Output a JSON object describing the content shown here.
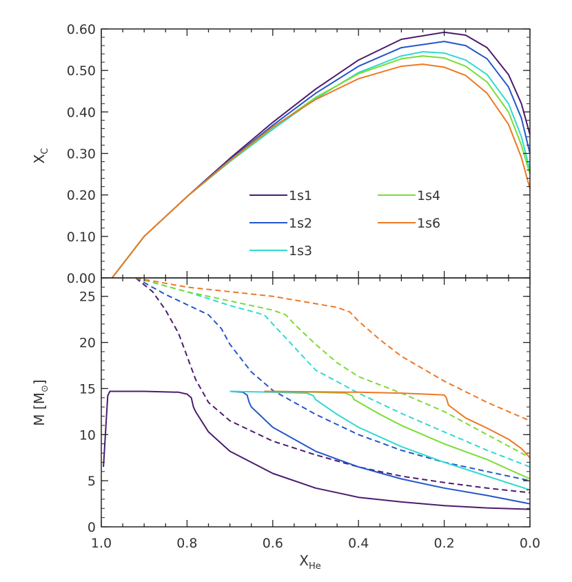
{
  "figure": {
    "x_axis_label": "X",
    "x_axis_label_sub": "He"
  },
  "chart_data": [
    {
      "type": "line",
      "panel": "top",
      "ylabel": "X",
      "ylabel_sub": "C",
      "xlim": [
        1.0,
        0.0
      ],
      "ylim": [
        0.0,
        0.6
      ],
      "x_reversed": true,
      "yticks": [
        "0.00",
        "0.10",
        "0.20",
        "0.30",
        "0.40",
        "0.50",
        "0.60"
      ],
      "grid": false,
      "legend_position": "lower-right",
      "series": [
        {
          "name": "1s1",
          "color": "#4b1a6e",
          "style": "solid",
          "x": [
            0.975,
            0.9,
            0.8,
            0.7,
            0.6,
            0.5,
            0.4,
            0.3,
            0.2,
            0.15,
            0.1,
            0.05,
            0.02,
            0.0
          ],
          "y": [
            0.0,
            0.1,
            0.196,
            0.288,
            0.375,
            0.455,
            0.525,
            0.575,
            0.592,
            0.585,
            0.555,
            0.49,
            0.42,
            0.345
          ]
        },
        {
          "name": "1s2",
          "color": "#2255cc",
          "style": "solid",
          "x": [
            0.975,
            0.9,
            0.8,
            0.7,
            0.6,
            0.5,
            0.4,
            0.3,
            0.2,
            0.15,
            0.1,
            0.05,
            0.02,
            0.0
          ],
          "y": [
            0.0,
            0.1,
            0.196,
            0.285,
            0.368,
            0.445,
            0.51,
            0.555,
            0.57,
            0.56,
            0.528,
            0.46,
            0.385,
            0.3
          ]
        },
        {
          "name": "1s3",
          "color": "#30d8d0",
          "style": "solid",
          "x": [
            0.975,
            0.9,
            0.8,
            0.7,
            0.6,
            0.5,
            0.4,
            0.3,
            0.25,
            0.2,
            0.15,
            0.1,
            0.05,
            0.02,
            0.0
          ],
          "y": [
            0.0,
            0.1,
            0.196,
            0.28,
            0.358,
            0.432,
            0.495,
            0.535,
            0.545,
            0.542,
            0.525,
            0.49,
            0.42,
            0.34,
            0.26
          ]
        },
        {
          "name": "1s4",
          "color": "#77dd33",
          "style": "solid",
          "x": [
            0.975,
            0.9,
            0.8,
            0.7,
            0.6,
            0.5,
            0.4,
            0.3,
            0.25,
            0.2,
            0.15,
            0.1,
            0.05,
            0.02,
            0.0
          ],
          "y": [
            0.0,
            0.1,
            0.196,
            0.282,
            0.362,
            0.435,
            0.492,
            0.528,
            0.535,
            0.53,
            0.51,
            0.472,
            0.4,
            0.32,
            0.25
          ]
        },
        {
          "name": "1s6",
          "color": "#ee7722",
          "style": "solid",
          "x": [
            0.975,
            0.9,
            0.8,
            0.7,
            0.6,
            0.5,
            0.4,
            0.3,
            0.25,
            0.2,
            0.15,
            0.1,
            0.05,
            0.02,
            0.0
          ],
          "y": [
            0.0,
            0.1,
            0.196,
            0.283,
            0.364,
            0.43,
            0.48,
            0.51,
            0.515,
            0.508,
            0.488,
            0.445,
            0.37,
            0.29,
            0.215
          ]
        }
      ]
    },
    {
      "type": "line",
      "panel": "bottom",
      "ylabel": "M [M",
      "ylabel_sub": "⊙",
      "ylabel_end": "]",
      "xlim": [
        1.0,
        0.0
      ],
      "ylim": [
        0,
        27
      ],
      "x_reversed": true,
      "xticks": [
        "1.0",
        "0.8",
        "0.6",
        "0.4",
        "0.2",
        "0.0"
      ],
      "yticks": [
        "0",
        "5",
        "10",
        "15",
        "20",
        "25"
      ],
      "grid": false,
      "series": [
        {
          "name": "1s1",
          "color": "#4b1a6e",
          "style": "solid",
          "x": [
            0.995,
            0.985,
            0.98,
            0.9,
            0.82,
            0.8,
            0.79,
            0.785,
            0.78,
            0.75,
            0.7,
            0.6,
            0.5,
            0.4,
            0.3,
            0.2,
            0.1,
            0.0
          ],
          "y": [
            6.5,
            14.2,
            14.7,
            14.7,
            14.6,
            14.4,
            14.0,
            13.0,
            12.5,
            10.3,
            8.2,
            5.8,
            4.2,
            3.2,
            2.7,
            2.3,
            2.05,
            1.9
          ]
        },
        {
          "name": "1s1",
          "color": "#4b1a6e",
          "style": "dashed",
          "x": [
            0.92,
            0.88,
            0.85,
            0.82,
            0.8,
            0.78,
            0.75,
            0.7,
            0.6,
            0.5,
            0.4,
            0.3,
            0.2,
            0.1,
            0.0
          ],
          "y": [
            27.0,
            25.5,
            23.5,
            21.0,
            18.5,
            16.0,
            13.5,
            11.5,
            9.3,
            7.8,
            6.5,
            5.5,
            4.8,
            4.2,
            3.7
          ]
        },
        {
          "name": "1s2",
          "color": "#2255cc",
          "style": "solid",
          "x": [
            0.7,
            0.67,
            0.66,
            0.655,
            0.65,
            0.6,
            0.5,
            0.4,
            0.3,
            0.2,
            0.1,
            0.0
          ],
          "y": [
            14.7,
            14.6,
            14.3,
            13.5,
            13.0,
            10.8,
            8.2,
            6.5,
            5.2,
            4.2,
            3.4,
            2.5
          ]
        },
        {
          "name": "1s2",
          "color": "#2255cc",
          "style": "dashed",
          "x": [
            0.92,
            0.85,
            0.75,
            0.72,
            0.7,
            0.65,
            0.6,
            0.5,
            0.4,
            0.3,
            0.2,
            0.1,
            0.0
          ],
          "y": [
            27.0,
            25.2,
            23.0,
            21.5,
            19.8,
            16.8,
            14.8,
            12.2,
            10.0,
            8.3,
            7.0,
            6.0,
            5.0
          ]
        },
        {
          "name": "1s3",
          "color": "#30d8d0",
          "style": "solid",
          "x": [
            0.7,
            0.6,
            0.52,
            0.505,
            0.5,
            0.45,
            0.4,
            0.3,
            0.2,
            0.1,
            0.0
          ],
          "y": [
            14.7,
            14.6,
            14.5,
            14.2,
            13.8,
            12.2,
            10.8,
            8.7,
            7.0,
            5.5,
            4.0
          ]
        },
        {
          "name": "1s3",
          "color": "#30d8d0",
          "style": "dashed",
          "x": [
            0.92,
            0.8,
            0.7,
            0.62,
            0.6,
            0.55,
            0.5,
            0.4,
            0.3,
            0.2,
            0.1,
            0.0
          ],
          "y": [
            27.0,
            25.5,
            24.0,
            23.0,
            22.0,
            19.5,
            17.0,
            14.5,
            12.3,
            10.3,
            8.3,
            6.5
          ]
        },
        {
          "name": "1s4",
          "color": "#77dd33",
          "style": "solid",
          "x": [
            0.6,
            0.5,
            0.43,
            0.415,
            0.41,
            0.35,
            0.3,
            0.2,
            0.1,
            0.0
          ],
          "y": [
            14.7,
            14.6,
            14.5,
            14.2,
            13.8,
            12.2,
            11.0,
            9.0,
            7.3,
            5.2
          ]
        },
        {
          "name": "1s4",
          "color": "#77dd33",
          "style": "dashed",
          "x": [
            0.92,
            0.8,
            0.7,
            0.6,
            0.57,
            0.55,
            0.5,
            0.45,
            0.4,
            0.3,
            0.2,
            0.1,
            0.0
          ],
          "y": [
            27.0,
            25.5,
            24.5,
            23.5,
            23.0,
            22.0,
            19.8,
            17.8,
            16.3,
            14.5,
            12.5,
            10.0,
            7.5
          ]
        },
        {
          "name": "1s6",
          "color": "#ee7722",
          "style": "solid",
          "x": [
            0.62,
            0.4,
            0.3,
            0.2,
            0.195,
            0.19,
            0.15,
            0.1,
            0.05,
            0.02,
            0.0
          ],
          "y": [
            14.7,
            14.6,
            14.5,
            14.3,
            14.0,
            13.2,
            11.8,
            10.7,
            9.5,
            8.5,
            7.5
          ]
        },
        {
          "name": "1s6",
          "color": "#ee7722",
          "style": "dashed",
          "x": [
            0.92,
            0.8,
            0.6,
            0.5,
            0.45,
            0.42,
            0.4,
            0.35,
            0.3,
            0.2,
            0.1,
            0.05,
            0.0
          ],
          "y": [
            27.0,
            26.0,
            25.0,
            24.2,
            23.8,
            23.3,
            22.3,
            20.3,
            18.5,
            15.8,
            13.5,
            12.5,
            11.5
          ]
        }
      ]
    }
  ]
}
